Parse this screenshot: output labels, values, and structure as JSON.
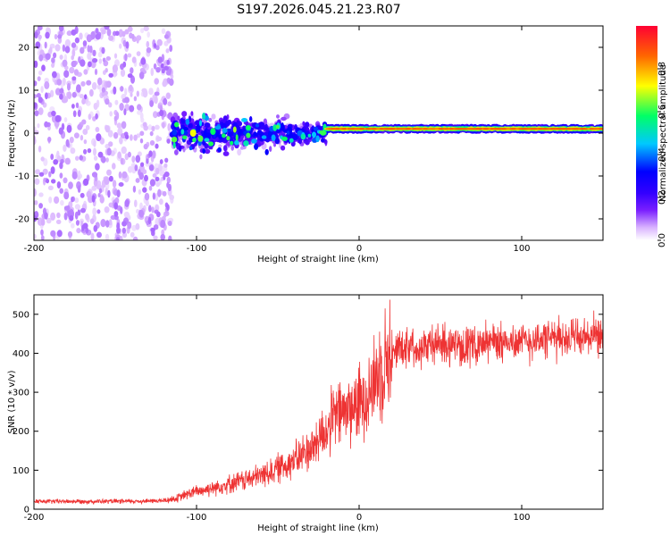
{
  "title": "S197.2026.045.21.23.R07",
  "chart_data": [
    {
      "type": "heatmap",
      "name": "spectrogram",
      "xlabel": "Height of straight line (km)",
      "ylabel": "Frequency (Hz)",
      "xlim": [
        -200,
        150
      ],
      "ylim": [
        -25,
        25
      ],
      "xticks": [
        -200,
        -100,
        0,
        100
      ],
      "xtick_labels": [
        "-200",
        "-100",
        "0",
        "100"
      ],
      "yticks": [
        -20,
        -10,
        0,
        10,
        20
      ],
      "ytick_labels": [
        "-20",
        "-10",
        "0",
        "10",
        "20"
      ],
      "colorbar": {
        "label": "Normalized spectral amplitude",
        "range": [
          0,
          1
        ],
        "ticks": [
          0.0,
          0.2,
          0.4,
          0.6,
          0.8
        ],
        "tick_labels": [
          "0.0",
          "0.2",
          "0.4",
          "0.6",
          "0.8"
        ],
        "colors": [
          "#ffffff",
          "#d9b3ff",
          "#7a1fff",
          "#3300ff",
          "#0000ff",
          "#00c8ff",
          "#00ff66",
          "#ffff00",
          "#ff6600",
          "#ff0033"
        ]
      },
      "regions": [
        {
          "x_range": [
            -200,
            -115
          ],
          "freq_spread_hz": 25,
          "typical_amplitude": 0.1,
          "description": "noise"
        },
        {
          "x_range": [
            -115,
            -20
          ],
          "freq_center_hz": 0,
          "freq_spread_hz": 8,
          "typical_amplitude": 0.3
        },
        {
          "x_range": [
            -20,
            150
          ],
          "freq_center_hz": 1,
          "freq_spread_hz": 1,
          "typical_amplitude": 0.9
        }
      ]
    },
    {
      "type": "line",
      "name": "snr",
      "xlabel": "Height of straight line (km)",
      "ylabel": "SNR (10 * v/v)",
      "xlim": [
        -200,
        150
      ],
      "ylim": [
        0,
        550
      ],
      "xticks": [
        -200,
        -100,
        0,
        100
      ],
      "xtick_labels": [
        "-200",
        "-100",
        "0",
        "100"
      ],
      "yticks": [
        0,
        100,
        200,
        300,
        400,
        500
      ],
      "ytick_labels": [
        "0",
        "100",
        "200",
        "300",
        "400",
        "500"
      ],
      "color": "#ee3333",
      "series": [
        {
          "name": "SNR",
          "x": [
            -200,
            -180,
            -160,
            -140,
            -120,
            -112,
            -105,
            -95,
            -85,
            -75,
            -65,
            -55,
            -45,
            -38,
            -32,
            -28,
            -24,
            -20,
            -15,
            -10,
            -5,
            0,
            5,
            10,
            15,
            20,
            25,
            30,
            40,
            50,
            60,
            70,
            80,
            90,
            100,
            110,
            120,
            130,
            140,
            150
          ],
          "y": [
            20,
            20,
            20,
            20,
            22,
            28,
            40,
            50,
            60,
            70,
            80,
            95,
            115,
            130,
            150,
            160,
            190,
            200,
            240,
            250,
            260,
            270,
            300,
            330,
            380,
            400,
            420,
            420,
            420,
            425,
            420,
            420,
            430,
            430,
            430,
            435,
            440,
            440,
            440,
            440
          ]
        }
      ]
    }
  ]
}
